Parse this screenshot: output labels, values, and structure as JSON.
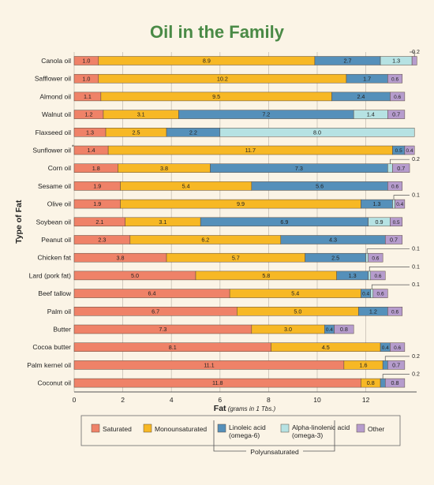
{
  "chart_data": {
    "type": "bar",
    "stacked": true,
    "orientation": "horizontal",
    "title": "Oil in the Family",
    "xlabel": "Fat",
    "xlabel_unit": "(grams in 1 Tbs.)",
    "ylabel": "Type of Fat",
    "xlim": [
      0,
      14
    ],
    "xticks": [
      "0",
      "2",
      "4",
      "6",
      "8",
      "10",
      "12"
    ],
    "grid": "vertical",
    "legend_position": "bottom",
    "categories": [
      "Canola oil",
      "Safflower oil",
      "Almond oil",
      "Walnut oil",
      "Flaxseed oil",
      "Sunflower oil",
      "Corn oil",
      "Sesame oil",
      "Olive oil",
      "Soybean oil",
      "Peanut oil",
      "Chicken fat",
      "Lard (pork fat)",
      "Beef tallow",
      "Palm oil",
      "Butter",
      "Cocoa butter",
      "Palm kernel oil",
      "Coconut oil"
    ],
    "category_marks": [
      "",
      "",
      "",
      "",
      "",
      "*",
      "",
      "",
      "",
      "",
      "",
      "",
      "",
      "",
      "",
      "",
      "",
      "",
      ""
    ],
    "series": [
      {
        "name": "Saturated",
        "color": "#ef8268",
        "values": [
          1.0,
          1.0,
          1.1,
          1.2,
          1.3,
          1.4,
          1.8,
          1.9,
          1.9,
          2.1,
          2.3,
          3.8,
          5.0,
          6.4,
          6.7,
          7.3,
          8.1,
          11.1,
          11.8
        ]
      },
      {
        "name": "Monounsaturated",
        "color": "#f7b825",
        "values": [
          8.9,
          10.2,
          9.5,
          3.1,
          2.5,
          11.7,
          3.8,
          5.4,
          9.9,
          3.1,
          6.2,
          5.7,
          5.8,
          5.4,
          5.0,
          3.0,
          4.5,
          1.6,
          0.8
        ]
      },
      {
        "name": "Linoleic acid (omega-6)",
        "color": "#5590ba",
        "values": [
          2.7,
          1.7,
          2.4,
          7.2,
          2.2,
          0.5,
          7.3,
          5.6,
          1.3,
          6.9,
          4.3,
          2.5,
          1.3,
          0.4,
          1.2,
          0.4,
          0.4,
          0.2,
          0.2
        ]
      },
      {
        "name": "Alpha-linolenic acid (omega-3)",
        "color": "#b6e2e3",
        "values": [
          1.3,
          0,
          0,
          1.4,
          8.0,
          0,
          0.2,
          0,
          0.1,
          0.9,
          0,
          0.1,
          0.1,
          0.1,
          0,
          0,
          0,
          0,
          0
        ]
      },
      {
        "name": "Other",
        "color": "#b69ccd",
        "values": [
          0.2,
          0.6,
          0.6,
          0.7,
          0,
          0.4,
          0.7,
          0.6,
          0.4,
          0.5,
          0.7,
          0.6,
          0.6,
          0.6,
          0.6,
          0.8,
          0.6,
          0.7,
          0.8
        ]
      }
    ],
    "legend": {
      "items": [
        "Saturated",
        "Monounsaturated",
        "Linoleic acid",
        "Alpha-linolenic acid",
        "Other"
      ],
      "sublabels": [
        "",
        "",
        "(omega-6)",
        "(omega-3)",
        ""
      ],
      "group_label": "Polyunsaturated"
    }
  }
}
